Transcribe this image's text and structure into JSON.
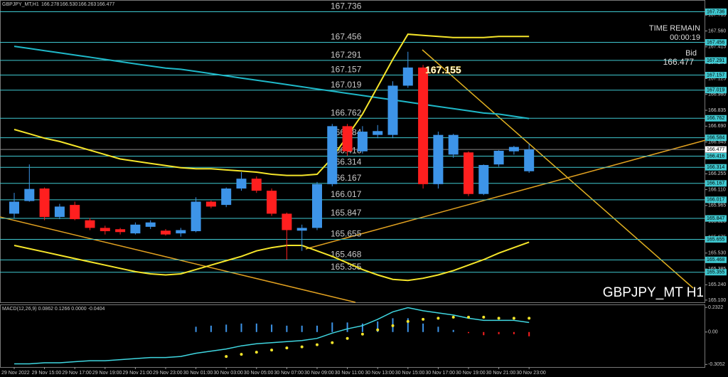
{
  "info": {
    "time_remain_label": "TIME REMAIN",
    "time_remain": "00:00:19",
    "bid_label": "Bid",
    "bid": "166.477",
    "watermark": "GBPJPY_MT H1"
  },
  "chart_data": [
    {
      "type": "candlestick",
      "header": {
        "symbol": "GBPJPY_MT,H1",
        "ohlc": [
          "166.278",
          "166.530",
          "166.263",
          "166.477"
        ]
      },
      "categories": [
        "29 Nov 2022",
        null,
        "29 Nov 15:00",
        null,
        "29 Nov 17:00",
        null,
        "29 Nov 19:00",
        null,
        "29 Nov 21:00",
        null,
        "29 Nov 23:00",
        null,
        "30 Nov 01:00",
        null,
        "30 Nov 03:00",
        null,
        "30 Nov 05:00",
        null,
        "30 Nov 07:00",
        null,
        "30 Nov 09:00",
        null,
        "30 Nov 11:00",
        null,
        "30 Nov 13:00",
        null,
        "30 Nov 15:00",
        null,
        "30 Nov 17:00",
        null,
        "30 Nov 19:00",
        null,
        "30 Nov 21:00",
        null,
        "30 Nov 23:00"
      ],
      "open": [
        165.89,
        166.006,
        166.12,
        165.86,
        165.97,
        165.83,
        165.76,
        165.748,
        165.71,
        165.77,
        165.735,
        165.71,
        165.73,
        166.0,
        165.97,
        166.12,
        166.21,
        166.1,
        165.89,
        165.735,
        165.76,
        166.16,
        166.69,
        166.46,
        166.61,
        166.61,
        167.06,
        167.226,
        166.16,
        166.43,
        166.45,
        166.07,
        166.34,
        166.46,
        166.278
      ],
      "high": [
        166.08,
        166.34,
        166.13,
        165.98,
        166.0,
        165.85,
        165.78,
        165.76,
        165.81,
        165.83,
        165.75,
        165.76,
        166.04,
        166.01,
        166.13,
        166.27,
        166.23,
        166.12,
        165.9,
        165.79,
        166.18,
        166.71,
        166.71,
        166.69,
        166.7,
        167.1,
        167.37,
        167.25,
        166.64,
        166.62,
        166.46,
        166.34,
        166.47,
        166.51,
        166.53
      ],
      "low": [
        165.85,
        166.0,
        165.83,
        165.84,
        165.83,
        165.74,
        165.7,
        165.7,
        165.7,
        165.75,
        165.69,
        165.68,
        165.72,
        165.94,
        165.95,
        166.1,
        166.08,
        165.87,
        165.47,
        165.55,
        165.74,
        166.14,
        166.42,
        166.44,
        166.58,
        166.58,
        167.04,
        166.12,
        166.12,
        166.4,
        166.05,
        166.06,
        166.32,
        166.43,
        166.263
      ],
      "close": [
        166.0,
        166.116,
        165.86,
        165.955,
        165.84,
        165.76,
        165.73,
        165.722,
        165.79,
        165.81,
        165.7,
        165.74,
        166.0,
        165.955,
        166.12,
        166.21,
        166.1,
        165.89,
        165.74,
        165.76,
        166.16,
        166.69,
        166.46,
        166.64,
        166.645,
        167.06,
        167.226,
        166.16,
        166.61,
        166.61,
        166.07,
        166.335,
        166.465,
        166.5,
        166.477
      ],
      "up_color": "#3d94e8",
      "down_color": "#ff1f1f",
      "series": [
        {
          "color": "#1fb8c8",
          "values": [
            167.42,
            167.4,
            167.38,
            167.36,
            167.34,
            167.32,
            167.3,
            167.28,
            167.26,
            167.24,
            167.22,
            167.21,
            167.19,
            167.17,
            167.15,
            167.13,
            167.11,
            167.09,
            167.07,
            167.05,
            167.03,
            167.01,
            166.99,
            166.97,
            166.95,
            166.93,
            166.91,
            166.89,
            166.87,
            166.85,
            166.83,
            166.81,
            166.8,
            166.78,
            166.76
          ]
        },
        {
          "color": "#f5e52a",
          "values": [
            166.66,
            166.62,
            166.58,
            166.55,
            166.51,
            166.47,
            166.43,
            166.39,
            166.37,
            166.35,
            166.33,
            166.31,
            166.3,
            166.3,
            166.29,
            166.28,
            166.27,
            166.25,
            166.24,
            166.24,
            166.25,
            166.4,
            166.6,
            166.8,
            167.05,
            167.3,
            167.53,
            167.52,
            167.51,
            167.5,
            167.5,
            167.5,
            167.51,
            167.51,
            167.51
          ]
        },
        {
          "color": "#f5e52a",
          "values": [
            165.6,
            165.57,
            165.54,
            165.51,
            165.48,
            165.45,
            165.42,
            165.39,
            165.36,
            165.34,
            165.33,
            165.34,
            165.38,
            165.42,
            165.46,
            165.5,
            165.55,
            165.58,
            165.6,
            165.6,
            165.55,
            165.5,
            165.44,
            165.38,
            165.33,
            165.29,
            165.28,
            165.3,
            165.33,
            165.37,
            165.42,
            165.47,
            165.53,
            165.58,
            165.63
          ]
        }
      ],
      "levels": [
        167.736,
        167.456,
        167.291,
        167.157,
        167.019,
        166.762,
        166.584,
        166.416,
        166.314,
        166.167,
        166.017,
        165.847,
        165.655,
        165.468,
        165.355
      ],
      "level_color": "#3fc8d0",
      "current_price": 166.477,
      "annotation": "167.155",
      "ylim": [
        165.08,
        167.83
      ],
      "yticks": [
        167.705,
        {
          "value": 167.56,
          "label": "167.560"
        },
        167.415,
        {
          "value": 167.27,
          "label": "167.270"
        },
        167.125,
        {
          "value": 166.98,
          "label": "166.980"
        },
        166.835,
        {
          "value": 166.69,
          "label": "166.690"
        },
        166.545,
        {
          "value": 166.4,
          "label": "166.400"
        },
        166.255,
        {
          "value": 166.11,
          "label": "166.110"
        },
        165.965,
        {
          "value": 165.82,
          "label": "165.820"
        },
        165.675,
        {
          "value": 165.53,
          "label": "165.530"
        },
        165.385,
        {
          "value": 165.24,
          "label": "165.240"
        },
        {
          "value": 165.1,
          "label": "165.100"
        }
      ]
    },
    {
      "type": "bar",
      "title": "MACD(12,26,9) 0.0862 0.1266 0.0000 -0.0404",
      "values": [
        0,
        0,
        0,
        0,
        0,
        0,
        0,
        0,
        0,
        0,
        0,
        0,
        0.05,
        0.06,
        0.07,
        0.08,
        0.08,
        0.07,
        0.06,
        0.06,
        0.06,
        0.09,
        0.09,
        0.08,
        0.1,
        0.13,
        0.13,
        0.08,
        0.05,
        0.02,
        -0.01,
        -0.03,
        -0.02,
        -0.02,
        -0.04
      ],
      "up_color": "#3d94e8",
      "down_color": "#ff1f1f",
      "series": [
        {
          "color": "#3fd6e0",
          "style": "line",
          "values": [
            -0.3,
            -0.3,
            -0.29,
            -0.29,
            -0.28,
            -0.27,
            -0.27,
            -0.26,
            -0.25,
            -0.24,
            -0.24,
            -0.23,
            -0.2,
            -0.18,
            -0.16,
            -0.13,
            -0.11,
            -0.1,
            -0.09,
            -0.08,
            -0.06,
            -0.01,
            0.03,
            0.06,
            0.12,
            0.19,
            0.23,
            0.2,
            0.18,
            0.16,
            0.13,
            0.11,
            0.11,
            0.11,
            0.09
          ]
        },
        {
          "color": "#f5e52a",
          "style": "dots",
          "values": [
            null,
            null,
            null,
            null,
            null,
            null,
            null,
            null,
            null,
            null,
            null,
            null,
            null,
            null,
            -0.23,
            -0.21,
            -0.19,
            -0.17,
            -0.15,
            -0.14,
            -0.12,
            -0.1,
            -0.06,
            -0.02,
            0.02,
            0.06,
            0.1,
            0.12,
            0.13,
            0.14,
            0.14,
            0.14,
            0.13,
            0.13,
            0.13
          ]
        }
      ],
      "ylim": [
        -0.33,
        0.26
      ],
      "yticks": [
        0.2322,
        {
          "value": 0,
          "label": "0.00"
        },
        -0.3052
      ]
    }
  ]
}
